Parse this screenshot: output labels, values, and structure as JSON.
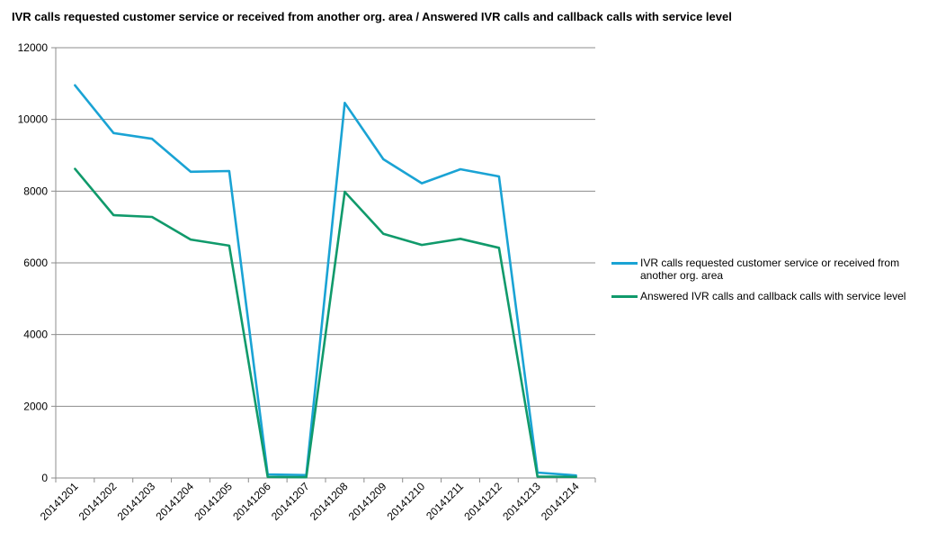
{
  "chart_data": {
    "type": "line",
    "title": "IVR calls requested customer service or received from another org. area / Answered IVR calls and callback calls with service level",
    "xlabel": "",
    "ylabel": "",
    "categories": [
      "20141201",
      "20141202",
      "20141203",
      "20141204",
      "20141205",
      "20141206",
      "20141207",
      "20141208",
      "20141209",
      "20141210",
      "20141211",
      "20141212",
      "20141213",
      "20141214"
    ],
    "ylim": [
      0,
      12000
    ],
    "yticks": [
      0,
      2000,
      4000,
      6000,
      8000,
      10000,
      12000
    ],
    "grid": true,
    "legend_position": "right",
    "series": [
      {
        "name": "IVR calls requested customer service or received from another org. area",
        "color": "#1aa3d4",
        "values": [
          10950,
          9620,
          9460,
          8540,
          8560,
          100,
          80,
          10460,
          8890,
          8220,
          8610,
          8410,
          150,
          70
        ]
      },
      {
        "name": "Answered IVR calls and callback calls with service level",
        "color": "#109a6b",
        "values": [
          8620,
          7330,
          7280,
          6650,
          6480,
          30,
          20,
          7980,
          6810,
          6500,
          6670,
          6420,
          40,
          30
        ]
      }
    ]
  }
}
